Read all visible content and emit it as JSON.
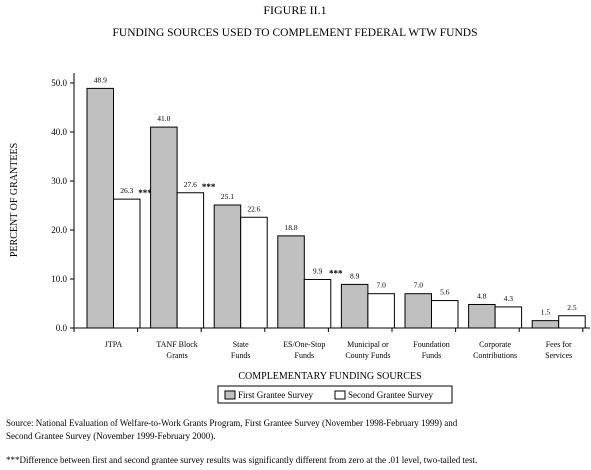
{
  "figure": {
    "number": "FIGURE II.1",
    "title": "FUNDING SOURCES USED TO COMPLEMENT FEDERAL WTW FUNDS"
  },
  "chart_data": {
    "type": "bar",
    "title": "FUNDING SOURCES USED TO COMPLEMENT FEDERAL WTW FUNDS",
    "xlabel": "COMPLEMENTARY FUNDING SOURCES",
    "ylabel": "PERCENT OF GRANTEES",
    "ylim": [
      0,
      50
    ],
    "yticks": [
      "0.0",
      "10.0",
      "20.0",
      "30.0",
      "40.0",
      "50.0"
    ],
    "categories": [
      [
        "JTPA"
      ],
      [
        "TANF Block",
        "Grants"
      ],
      [
        "State",
        "Funds"
      ],
      [
        "ES/One-Stop",
        "Funds"
      ],
      [
        "Municipal or",
        "County Funds"
      ],
      [
        "Foundation",
        "Funds"
      ],
      [
        "Corporate",
        "Contributions"
      ],
      [
        "Fees for",
        "Services"
      ]
    ],
    "series": [
      {
        "name": "First Grantee Survey",
        "color": "#c0c0c0",
        "values": [
          48.9,
          41.0,
          25.1,
          18.8,
          8.9,
          7.0,
          4.8,
          1.5
        ],
        "labels": [
          "48.9",
          "41.0",
          "25.1",
          "18.8",
          "8.9",
          "7.0",
          "4.8",
          "1.5"
        ]
      },
      {
        "name": "Second Grantee Survey",
        "color": "#ffffff",
        "values": [
          26.3,
          27.6,
          22.6,
          9.9,
          7.0,
          5.6,
          4.3,
          2.5
        ],
        "labels": [
          "26.3",
          "27.6",
          "22.6",
          "9.9",
          "7.0",
          "5.6",
          "4.3",
          "2.5"
        ],
        "significance": [
          "***",
          "***",
          "",
          "***",
          "",
          "",
          "",
          ""
        ]
      }
    ],
    "legend_position": "bottom",
    "grid": false
  },
  "notes": {
    "source_line1": "Source:  National Evaluation of Welfare-to-Work Grants Program, First Grantee Survey (November 1998-February 1999) and",
    "source_line2": "Second Grantee Survey (November 1999-February 2000).",
    "significance": "***Difference between first and second grantee survey results was significantly different from zero at the .01 level, two-tailed test."
  }
}
